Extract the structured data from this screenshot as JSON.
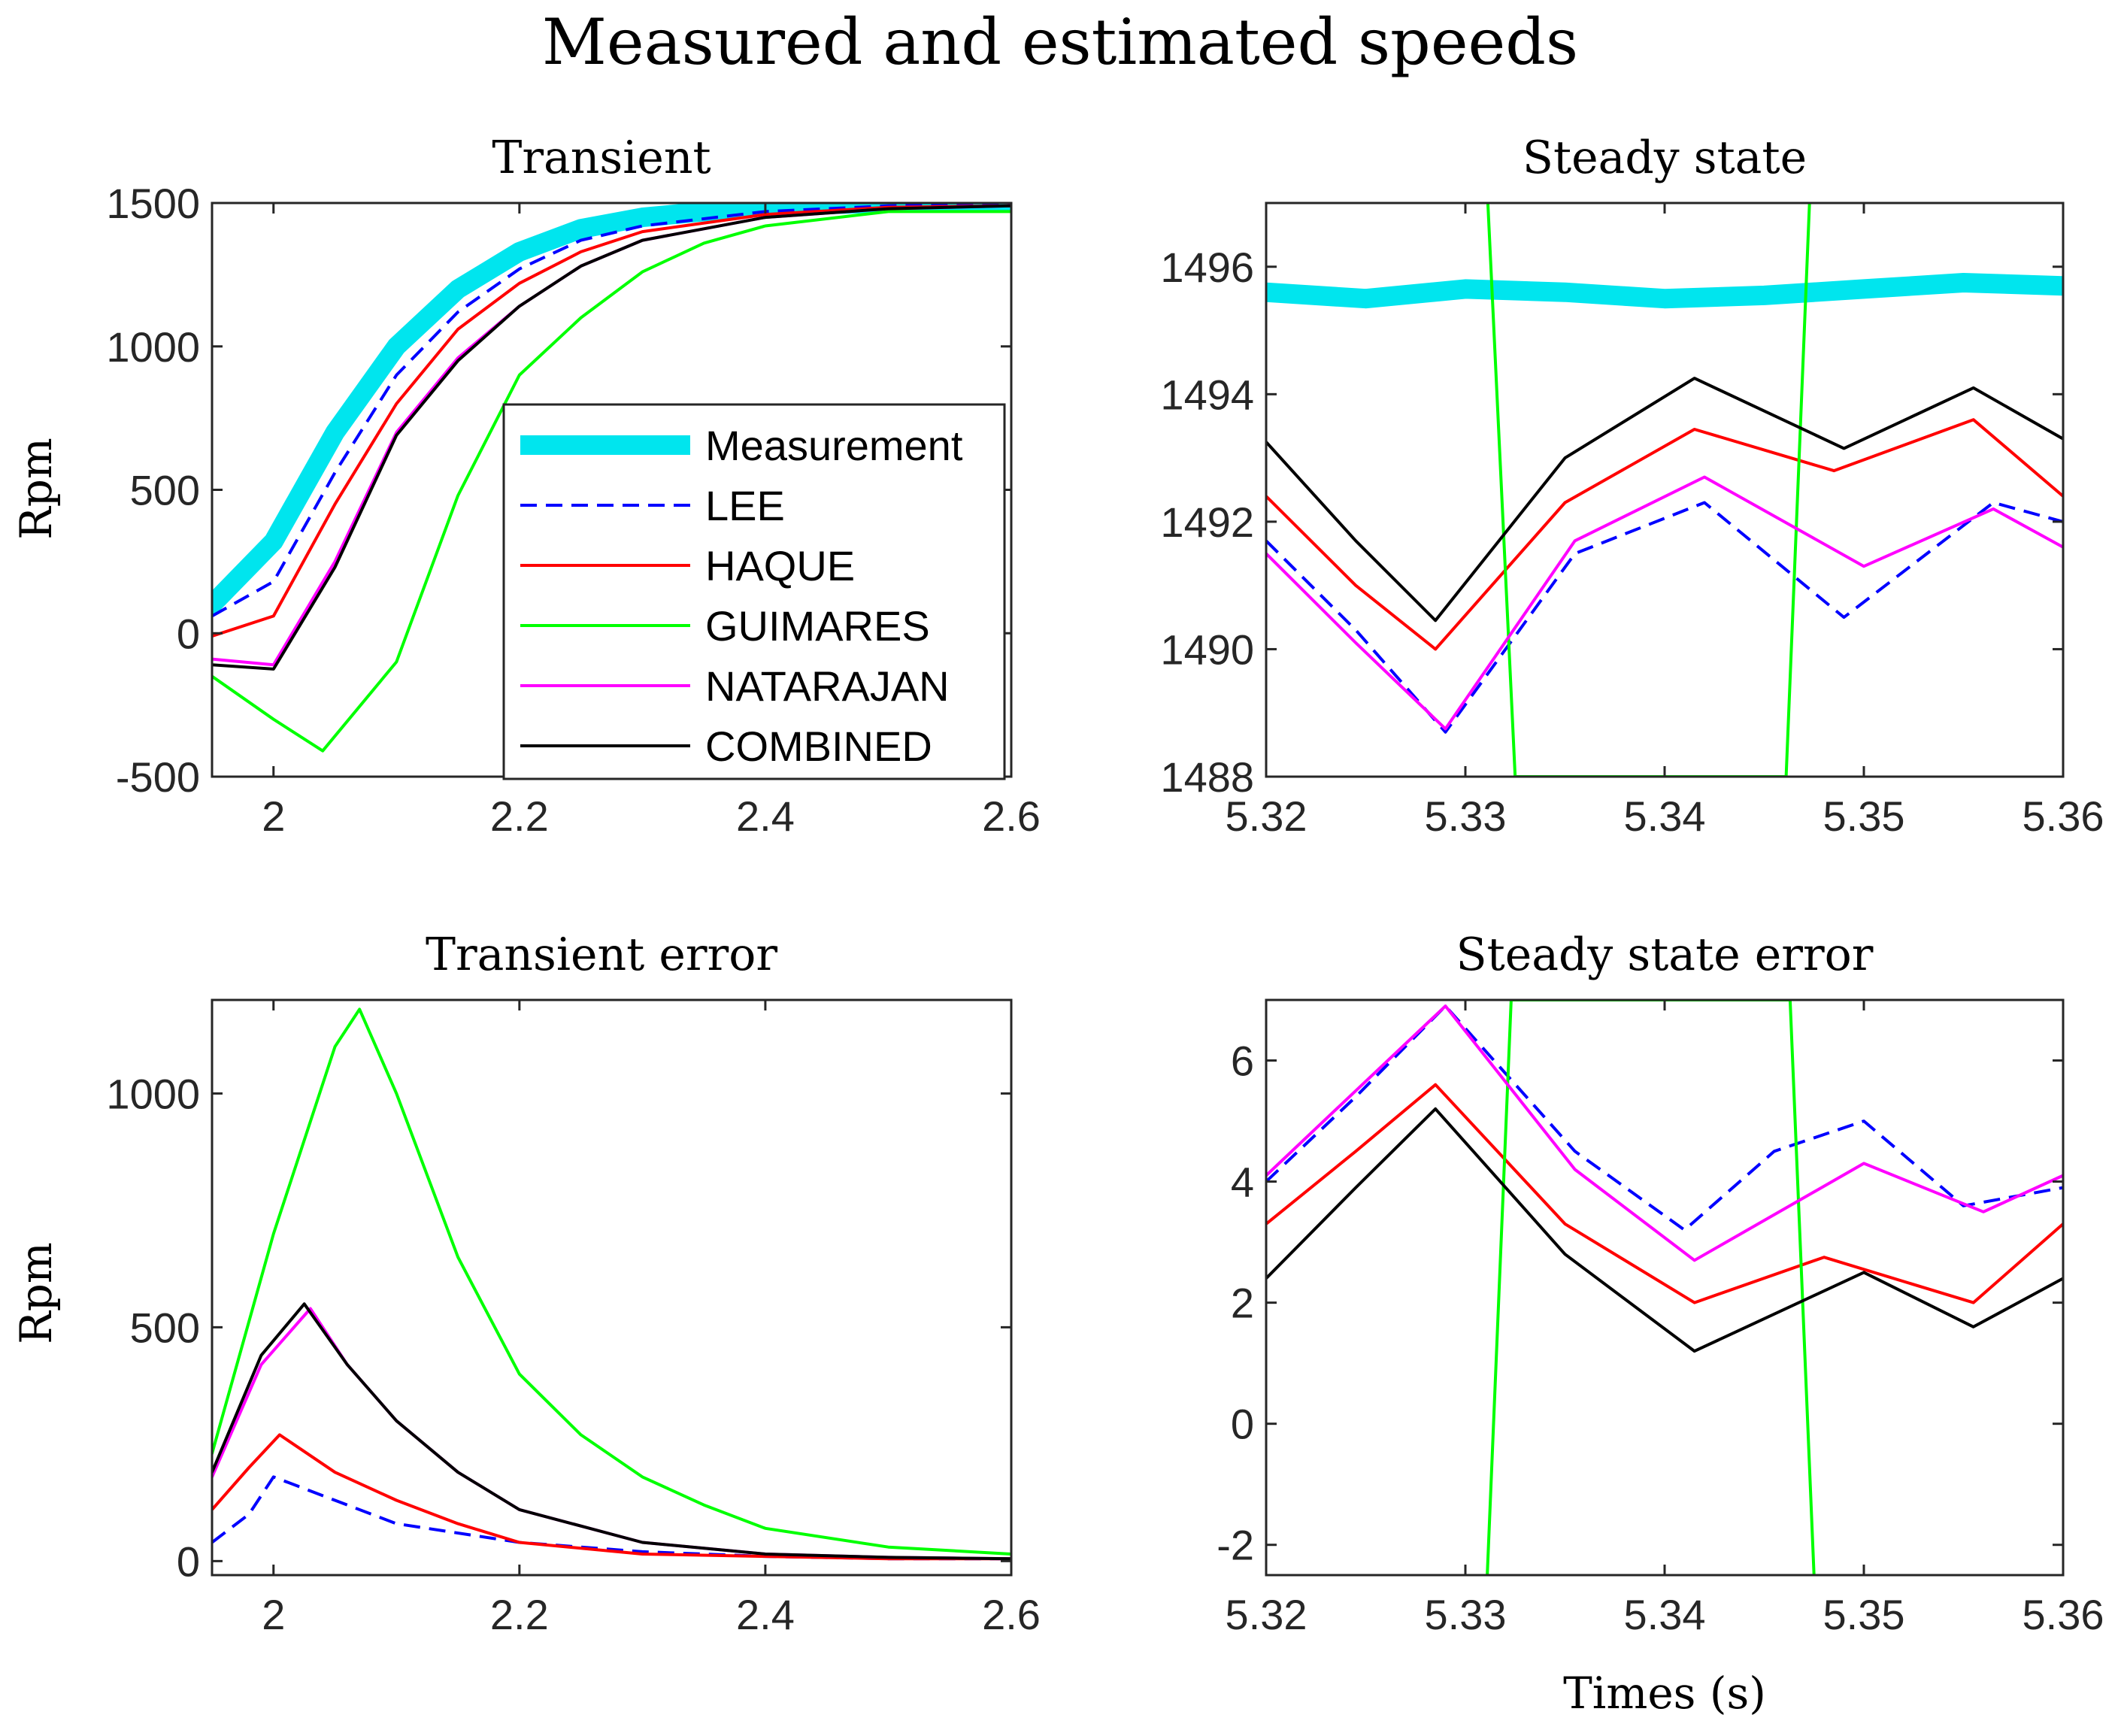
{
  "figure": {
    "title": "Measured and estimated speeds",
    "xlabel": "Times (s)"
  },
  "legend": {
    "entries": [
      {
        "name": "Measurement",
        "color": "#00e5ee",
        "style": "thick"
      },
      {
        "name": "LEE",
        "color": "#0000ff",
        "style": "dashed"
      },
      {
        "name": "HAQUE",
        "color": "#ff0000",
        "style": "solid"
      },
      {
        "name": "GUIMARES",
        "color": "#00ff00",
        "style": "solid"
      },
      {
        "name": "NATARAJAN",
        "color": "#ff00ff",
        "style": "solid"
      },
      {
        "name": "COMBINED",
        "color": "#000000",
        "style": "solid"
      }
    ]
  },
  "chart_data": [
    {
      "id": "transient",
      "type": "line",
      "title": "Transient",
      "ylabel": "Rpm",
      "xlabel": "",
      "xlim": [
        1.95,
        2.6
      ],
      "ylim": [
        -500,
        1500
      ],
      "xticks": [
        2,
        2.2,
        2.4,
        2.6
      ],
      "xtick_labels": [
        "2",
        "2.2",
        "2.4",
        "2.6"
      ],
      "yticks": [
        -500,
        0,
        500,
        1000,
        1500
      ],
      "ytick_labels": [
        "-500",
        "0",
        "500",
        "1000",
        "1500"
      ],
      "legend": "inside-right",
      "series": [
        {
          "name": "Measurement",
          "x": [
            1.95,
            2.0,
            2.05,
            2.1,
            2.15,
            2.2,
            2.25,
            2.3,
            2.4,
            2.5,
            2.6
          ],
          "y": [
            100,
            320,
            700,
            1000,
            1200,
            1330,
            1410,
            1450,
            1490,
            1500,
            1500
          ]
        },
        {
          "name": "LEE",
          "x": [
            1.95,
            2.0,
            2.05,
            2.1,
            2.15,
            2.2,
            2.25,
            2.3,
            2.4,
            2.5,
            2.6
          ],
          "y": [
            60,
            180,
            560,
            900,
            1120,
            1270,
            1370,
            1420,
            1470,
            1490,
            1495
          ]
        },
        {
          "name": "HAQUE",
          "x": [
            1.95,
            2.0,
            2.05,
            2.1,
            2.15,
            2.2,
            2.25,
            2.3,
            2.4,
            2.5,
            2.6
          ],
          "y": [
            -10,
            60,
            450,
            800,
            1060,
            1220,
            1330,
            1400,
            1460,
            1485,
            1490
          ]
        },
        {
          "name": "GUIMARES",
          "x": [
            1.95,
            2.0,
            2.04,
            2.1,
            2.15,
            2.2,
            2.25,
            2.3,
            2.35,
            2.4,
            2.5,
            2.6
          ],
          "y": [
            -150,
            -300,
            -410,
            -100,
            480,
            900,
            1100,
            1260,
            1360,
            1420,
            1470,
            1470
          ]
        },
        {
          "name": "NATARAJAN",
          "x": [
            1.95,
            2.0,
            2.05,
            2.1,
            2.15,
            2.2,
            2.25,
            2.3,
            2.4,
            2.5,
            2.6
          ],
          "y": [
            -90,
            -110,
            250,
            700,
            960,
            1140,
            1280,
            1370,
            1450,
            1480,
            1490
          ]
        },
        {
          "name": "COMBINED",
          "x": [
            1.95,
            2.0,
            2.05,
            2.1,
            2.15,
            2.2,
            2.25,
            2.3,
            2.4,
            2.5,
            2.6
          ],
          "y": [
            -110,
            -125,
            230,
            690,
            950,
            1140,
            1280,
            1370,
            1450,
            1480,
            1490
          ]
        }
      ]
    },
    {
      "id": "steady",
      "type": "line",
      "title": "Steady state",
      "ylabel": "",
      "xlabel": "",
      "xlim": [
        5.32,
        5.36
      ],
      "ylim": [
        1488,
        1497
      ],
      "xticks": [
        5.32,
        5.33,
        5.34,
        5.35,
        5.36
      ],
      "xtick_labels": [
        "5.32",
        "5.33",
        "5.34",
        "5.35",
        "5.36"
      ],
      "yticks": [
        1488,
        1490,
        1492,
        1494,
        1496
      ],
      "ytick_labels": [
        "1488",
        "1490",
        "1492",
        "1494",
        "1496"
      ],
      "series": [
        {
          "name": "Measurement",
          "x": [
            5.32,
            5.325,
            5.33,
            5.335,
            5.34,
            5.345,
            5.35,
            5.355,
            5.36
          ],
          "y": [
            1495.6,
            1495.5,
            1495.65,
            1495.6,
            1495.5,
            1495.55,
            1495.65,
            1495.75,
            1495.7
          ]
        },
        {
          "name": "LEE",
          "x": [
            5.32,
            5.3245,
            5.329,
            5.3355,
            5.342,
            5.349,
            5.3565,
            5.36
          ],
          "y": [
            1491.7,
            1490.3,
            1488.7,
            1491.5,
            1492.3,
            1490.5,
            1492.3,
            1492.0
          ]
        },
        {
          "name": "HAQUE",
          "x": [
            5.32,
            5.3245,
            5.3285,
            5.335,
            5.3415,
            5.3485,
            5.3555,
            5.36
          ],
          "y": [
            1492.4,
            1491.0,
            1490.0,
            1492.3,
            1493.45,
            1492.8,
            1493.6,
            1492.4
          ]
        },
        {
          "name": "GUIMARES",
          "x": [
            5.3311,
            5.3325,
            5.3461,
            5.3473
          ],
          "y": [
            1497.2,
            1488.0,
            1488.0,
            1497.2
          ]
        },
        {
          "name": "NATARAJAN",
          "x": [
            5.32,
            5.3245,
            5.329,
            5.3355,
            5.342,
            5.35,
            5.3565,
            5.36
          ],
          "y": [
            1491.5,
            1490.1,
            1488.75,
            1491.7,
            1492.7,
            1491.3,
            1492.2,
            1491.6
          ]
        },
        {
          "name": "COMBINED",
          "x": [
            5.32,
            5.3245,
            5.3285,
            5.335,
            5.3415,
            5.349,
            5.3555,
            5.36
          ],
          "y": [
            1493.25,
            1491.7,
            1490.45,
            1493.0,
            1494.25,
            1493.15,
            1494.1,
            1493.3
          ]
        }
      ]
    },
    {
      "id": "transient_error",
      "type": "line",
      "title": "Transient error",
      "ylabel": "Rpm",
      "xlabel": "",
      "xlim": [
        1.95,
        2.6
      ],
      "ylim": [
        -30,
        1200
      ],
      "xticks": [
        2,
        2.2,
        2.4,
        2.6
      ],
      "xtick_labels": [
        "2",
        "2.2",
        "2.4",
        "2.6"
      ],
      "yticks": [
        0,
        500,
        1000
      ],
      "ytick_labels": [
        "0",
        "500",
        "1000"
      ],
      "series": [
        {
          "name": "LEE",
          "x": [
            1.95,
            1.98,
            2.0,
            2.02,
            2.05,
            2.1,
            2.2,
            2.3,
            2.4,
            2.5,
            2.6
          ],
          "y": [
            40,
            100,
            180,
            160,
            130,
            80,
            40,
            20,
            10,
            5,
            5
          ]
        },
        {
          "name": "HAQUE",
          "x": [
            1.95,
            1.98,
            2.005,
            2.05,
            2.1,
            2.15,
            2.2,
            2.3,
            2.4,
            2.5,
            2.6
          ],
          "y": [
            110,
            200,
            270,
            190,
            130,
            80,
            40,
            15,
            10,
            5,
            5
          ]
        },
        {
          "name": "GUIMARES",
          "x": [
            1.95,
            2.0,
            2.05,
            2.07,
            2.1,
            2.15,
            2.2,
            2.25,
            2.3,
            2.35,
            2.4,
            2.5,
            2.6
          ],
          "y": [
            230,
            700,
            1100,
            1180,
            1000,
            650,
            400,
            270,
            180,
            120,
            70,
            30,
            15
          ]
        },
        {
          "name": "NATARAJAN",
          "x": [
            1.95,
            1.99,
            2.03,
            2.06,
            2.1,
            2.15,
            2.2,
            2.3,
            2.4,
            2.5,
            2.6
          ],
          "y": [
            180,
            420,
            540,
            420,
            300,
            190,
            110,
            40,
            15,
            8,
            5
          ]
        },
        {
          "name": "COMBINED",
          "x": [
            1.95,
            1.99,
            2.025,
            2.06,
            2.1,
            2.15,
            2.2,
            2.3,
            2.4,
            2.5,
            2.6
          ],
          "y": [
            190,
            440,
            550,
            420,
            300,
            190,
            110,
            40,
            15,
            8,
            5
          ]
        }
      ]
    },
    {
      "id": "steady_error",
      "type": "line",
      "title": "Steady state error",
      "ylabel": "",
      "xlabel": "Times (s)",
      "xlim": [
        5.32,
        5.36
      ],
      "ylim": [
        -2.5,
        7
      ],
      "xticks": [
        5.32,
        5.33,
        5.34,
        5.35,
        5.36
      ],
      "xtick_labels": [
        "5.32",
        "5.33",
        "5.34",
        "5.35",
        "5.36"
      ],
      "yticks": [
        -2,
        0,
        2,
        4,
        6
      ],
      "ytick_labels": [
        "-2",
        "0",
        "2",
        "4",
        "6"
      ],
      "series": [
        {
          "name": "LEE",
          "x": [
            5.32,
            5.3245,
            5.329,
            5.3355,
            5.341,
            5.3455,
            5.35,
            5.355,
            5.36
          ],
          "y": [
            4.0,
            5.4,
            6.9,
            4.5,
            3.2,
            4.5,
            5.0,
            3.6,
            3.9
          ]
        },
        {
          "name": "HAQUE",
          "x": [
            5.32,
            5.3245,
            5.3285,
            5.335,
            5.3415,
            5.348,
            5.3555,
            5.36
          ],
          "y": [
            3.3,
            4.5,
            5.6,
            3.3,
            2.0,
            2.75,
            2.0,
            3.3
          ]
        },
        {
          "name": "GUIMARES",
          "x": [
            5.3311,
            5.3323,
            5.3463,
            5.3475
          ],
          "y": [
            -2.5,
            7.0,
            7.0,
            -2.5
          ]
        },
        {
          "name": "NATARAJAN",
          "x": [
            5.32,
            5.3245,
            5.329,
            5.3355,
            5.3415,
            5.35,
            5.356,
            5.36
          ],
          "y": [
            4.1,
            5.5,
            6.9,
            4.2,
            2.7,
            4.3,
            3.5,
            4.1
          ]
        },
        {
          "name": "COMBINED",
          "x": [
            5.32,
            5.3245,
            5.3285,
            5.335,
            5.3415,
            5.35,
            5.3555,
            5.36
          ],
          "y": [
            2.4,
            3.9,
            5.2,
            2.8,
            1.2,
            2.5,
            1.6,
            2.4
          ]
        }
      ]
    }
  ]
}
